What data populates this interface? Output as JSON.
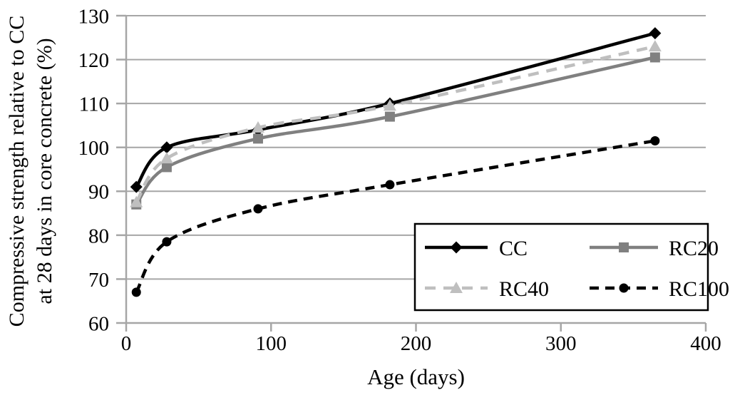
{
  "chart_data": {
    "type": "line",
    "title": "",
    "xlabel": "Age (days)",
    "ylabel_line1": "Compressive strength relative to CC",
    "ylabel_line2": "at 28 days in core concrete (%)",
    "x": [
      7,
      28,
      91,
      182,
      365
    ],
    "xlim": [
      0,
      400
    ],
    "ylim": [
      60,
      130
    ],
    "x_ticks": [
      0,
      100,
      200,
      300,
      400
    ],
    "y_ticks": [
      60,
      70,
      80,
      90,
      100,
      110,
      120,
      130
    ],
    "grid": "horizontal-only",
    "axis_color": "#a6a6a6",
    "background": "#ffffff",
    "legend_position": "inside-bottom-right-box",
    "series": [
      {
        "name": "CC",
        "color": "#000000",
        "line": "solid",
        "marker": "diamond",
        "values": [
          91,
          100,
          104,
          110,
          126
        ]
      },
      {
        "name": "RC20",
        "color": "#808080",
        "line": "solid",
        "marker": "square",
        "values": [
          87,
          95.5,
          102,
          107,
          120.5
        ]
      },
      {
        "name": "RC40",
        "color": "#bfbfbf",
        "line": "dashed",
        "marker": "triangle",
        "values": [
          87.5,
          97.5,
          104.5,
          109.5,
          123
        ]
      },
      {
        "name": "RC100",
        "color": "#000000",
        "line": "dashed",
        "marker": "circle",
        "values": [
          67,
          78.5,
          86,
          91.5,
          101.5
        ]
      }
    ]
  }
}
